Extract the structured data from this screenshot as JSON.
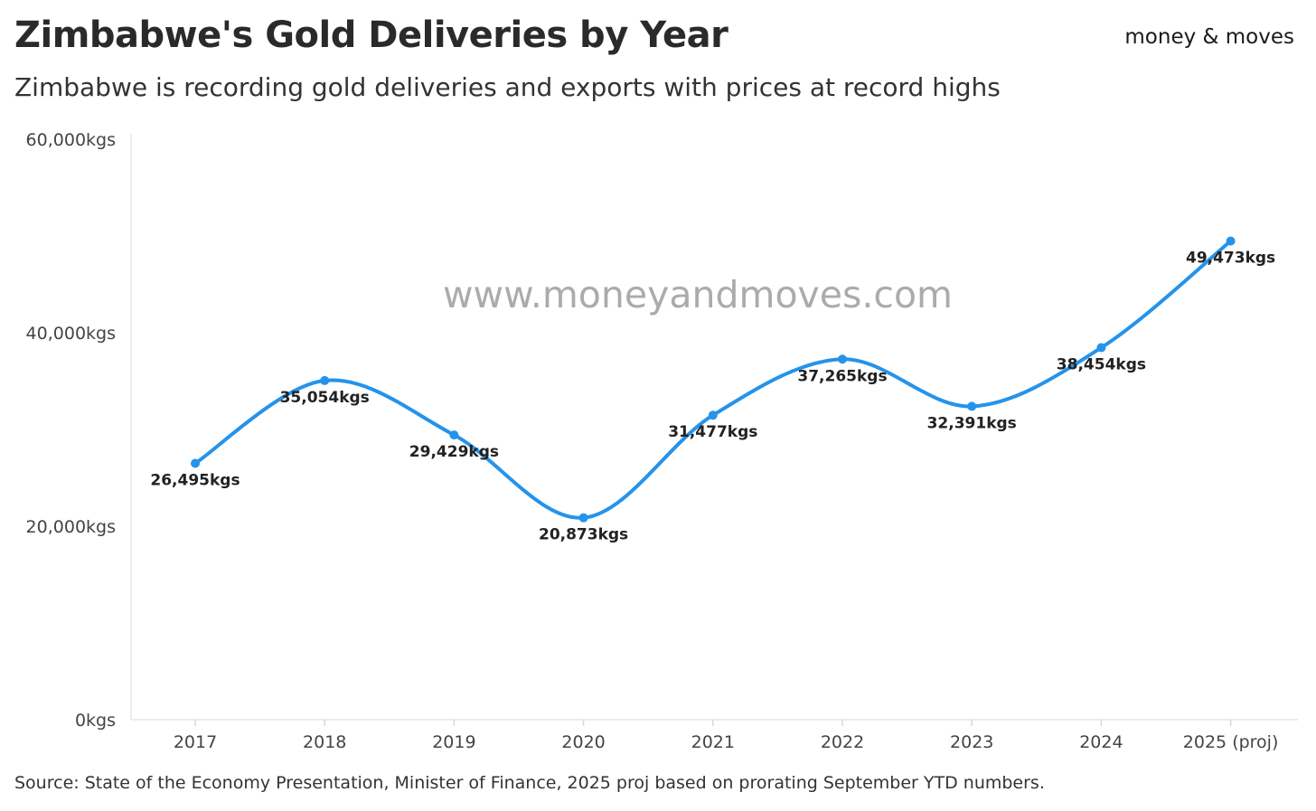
{
  "header": {
    "title": "Zimbabwe's Gold Deliveries by Year",
    "subtitle": "Zimbabwe is recording gold deliveries and exports with prices at record highs",
    "brand": "money & moves"
  },
  "watermark": "www.moneyandmoves.com",
  "footer": {
    "source": "Source: State of the Economy Presentation, Minister of Finance, 2025 proj based on prorating September YTD numbers."
  },
  "chart_data": {
    "type": "line",
    "title": "Zimbabwe's Gold Deliveries by Year",
    "xlabel": "",
    "ylabel": "",
    "categories": [
      "2017",
      "2018",
      "2019",
      "2020",
      "2021",
      "2022",
      "2023",
      "2024",
      "2025 (proj)"
    ],
    "series": [
      {
        "name": "Gold deliveries",
        "values": [
          26495,
          35054,
          29429,
          20873,
          31477,
          37265,
          32391,
          38454,
          49473
        ],
        "labels": [
          "26,495kgs",
          "35,054kgs",
          "29,429kgs",
          "20,873kgs",
          "31,477kgs",
          "37,265kgs",
          "32,391kgs",
          "38,454kgs",
          "49,473kgs"
        ]
      }
    ],
    "ylim": [
      0,
      60000
    ],
    "yticks": [
      0,
      20000,
      40000,
      60000
    ],
    "ytick_labels": [
      "0kgs",
      "20,000kgs",
      "40,000kgs",
      "60,000kgs"
    ],
    "line_color": "#2593ea",
    "grid": false
  }
}
